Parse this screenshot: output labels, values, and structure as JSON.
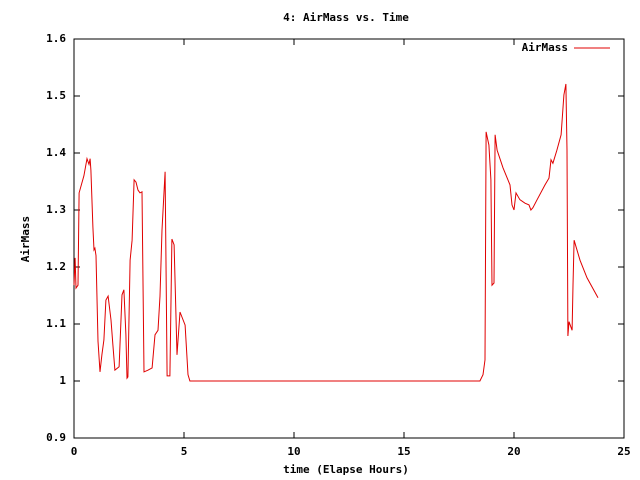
{
  "chart_data": {
    "type": "line",
    "title": "4: AirMass vs. Time",
    "x_label": "time (Elapse Hours)",
    "y_label": "AirMass",
    "legend": "top-right",
    "xlim": [
      0,
      25
    ],
    "xticks": [
      0,
      5,
      10,
      15,
      20,
      25
    ],
    "ylim": [
      0.9,
      1.6
    ],
    "yticks": [
      0.9,
      1,
      1.1,
      1.2,
      1.3,
      1.4,
      1.5,
      1.6
    ],
    "series": [
      {
        "name": "AirMass",
        "color": "#e00000",
        "x": [
          0,
          0.05,
          0.09,
          0.18,
          0.23,
          0.45,
          0.59,
          0.68,
          0.73,
          0.77,
          0.86,
          0.91,
          0.95,
          1.0,
          1.09,
          1.18,
          1.27,
          1.36,
          1.45,
          1.55,
          1.68,
          1.77,
          1.86,
          2.05,
          2.18,
          2.27,
          2.36,
          2.41,
          2.45,
          2.55,
          2.64,
          2.73,
          2.82,
          2.91,
          3.0,
          3.09,
          3.18,
          3.36,
          3.55,
          3.68,
          3.82,
          3.91,
          4.0,
          4.14,
          4.23,
          4.36,
          4.45,
          4.55,
          4.68,
          4.82,
          5.05,
          5.18,
          5.27,
          18.45,
          18.59,
          18.68,
          18.73,
          18.86,
          18.95,
          19.0,
          19.09,
          19.14,
          19.23,
          19.5,
          19.82,
          19.91,
          20.0,
          20.09,
          20.27,
          20.5,
          20.68,
          20.77,
          20.86,
          21.05,
          21.41,
          21.59,
          21.68,
          21.77,
          21.95,
          22.14,
          22.27,
          22.36,
          22.41,
          22.45,
          22.5,
          22.64,
          22.68,
          22.73,
          23.0,
          23.32,
          23.82
        ],
        "values": [
          1.168,
          1.216,
          1.163,
          1.168,
          1.33,
          1.36,
          1.39,
          1.38,
          1.39,
          1.37,
          1.27,
          1.23,
          1.233,
          1.22,
          1.07,
          1.016,
          1.046,
          1.072,
          1.142,
          1.149,
          1.107,
          1.063,
          1.019,
          1.025,
          1.151,
          1.16,
          1.081,
          1.005,
          1.007,
          1.212,
          1.247,
          1.353,
          1.349,
          1.335,
          1.33,
          1.332,
          1.016,
          1.019,
          1.023,
          1.081,
          1.089,
          1.149,
          1.265,
          1.367,
          1.009,
          1.009,
          1.249,
          1.239,
          1.046,
          1.121,
          1.098,
          1.011,
          1.0,
          1.0,
          1.011,
          1.037,
          1.437,
          1.414,
          1.353,
          1.168,
          1.172,
          1.432,
          1.405,
          1.374,
          1.344,
          1.309,
          1.3,
          1.33,
          1.318,
          1.312,
          1.309,
          1.3,
          1.304,
          1.318,
          1.344,
          1.356,
          1.388,
          1.382,
          1.405,
          1.432,
          1.502,
          1.521,
          1.405,
          1.079,
          1.104,
          1.089,
          1.168,
          1.247,
          1.212,
          1.181,
          1.146
        ]
      }
    ]
  }
}
